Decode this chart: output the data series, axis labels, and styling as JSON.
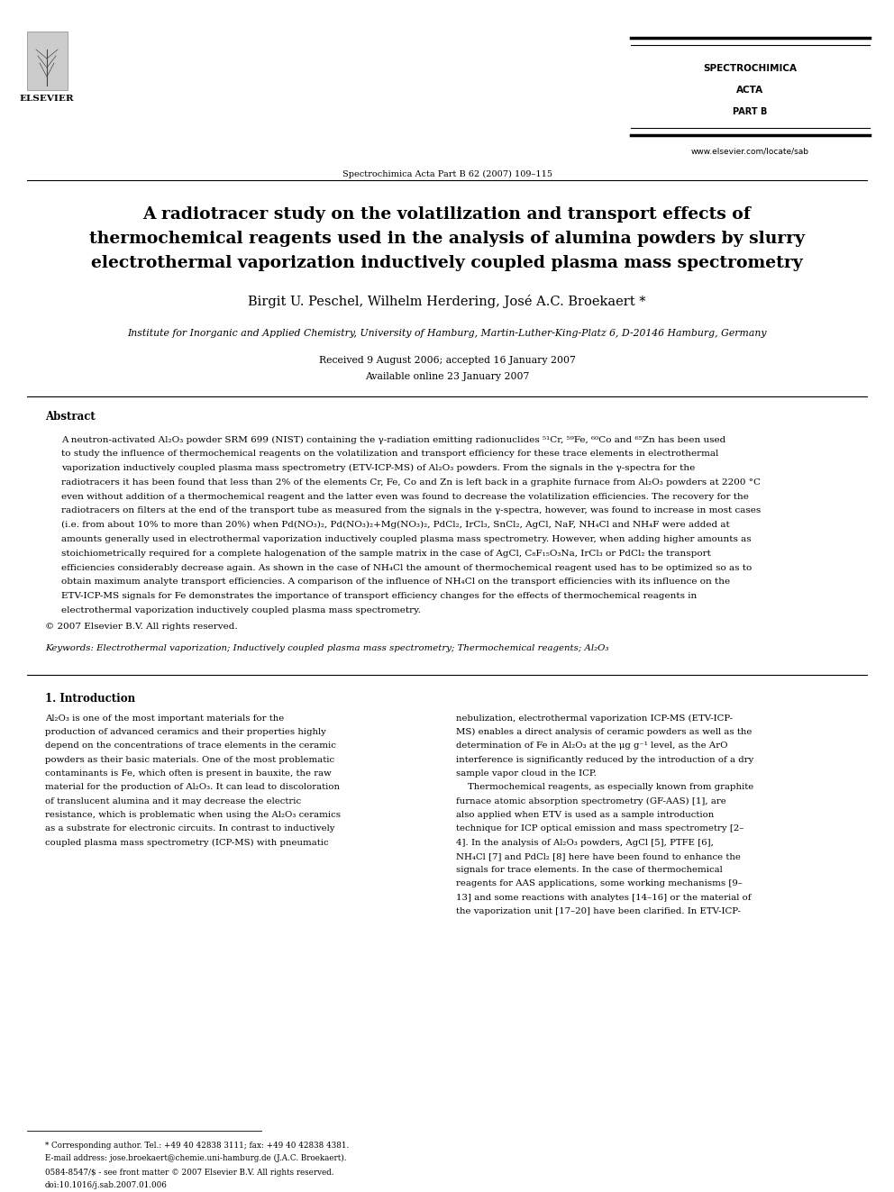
{
  "page_width": 9.92,
  "page_height": 13.23,
  "bg_color": "#ffffff",
  "journal_name_line1": "SPECTROCHIMICA",
  "journal_name_line2": "ACTA",
  "journal_part": "PART B",
  "journal_ref": "Spectrochimica Acta Part B 62 (2007) 109–115",
  "website": "www.elsevier.com/locate/sab",
  "title_line1": "A radiotracer study on the volatilization and transport effects of",
  "title_line2": "thermochemical reagents used in the analysis of alumina powders by slurry",
  "title_line3": "electrothermal vaporization inductively coupled plasma mass spectrometry",
  "authors": "Birgit U. Peschel, Wilhelm Herdering, José A.C. Broekaert *",
  "affiliation": "Institute for Inorganic and Applied Chemistry, University of Hamburg, Martin-Luther-King-Platz 6, D-20146 Hamburg, Germany",
  "received": "Received 9 August 2006; accepted 16 January 2007",
  "available": "Available online 23 January 2007",
  "abstract_title": "Abstract",
  "copyright": "© 2007 Elsevier B.V. All rights reserved.",
  "keywords": "Keywords: Electrothermal vaporization; Inductively coupled plasma mass spectrometry; Thermochemical reagents; Al₂O₃",
  "section1_title": "1. Introduction",
  "footnote_star": "* Corresponding author. Tel.: +49 40 42838 3111; fax: +49 40 42838 4381.",
  "footnote_email": "E-mail address: jose.broekaert@chemie.uni-hamburg.de (J.A.C. Broekaert).",
  "issn": "0584-8547/$ - see front matter © 2007 Elsevier B.V. All rights reserved.",
  "doi": "doi:10.1016/j.sab.2007.01.006",
  "abstract_lines": [
    "A neutron-activated Al₂O₃ powder SRM 699 (NIST) containing the γ-radiation emitting radionuclides ⁵¹Cr, ⁵⁹Fe, ⁶⁰Co and ⁶⁵Zn has been used",
    "to study the influence of thermochemical reagents on the volatilization and transport efficiency for these trace elements in electrothermal",
    "vaporization inductively coupled plasma mass spectrometry (ETV-ICP-MS) of Al₂O₃ powders. From the signals in the γ-spectra for the",
    "radiotracers it has been found that less than 2% of the elements Cr, Fe, Co and Zn is left back in a graphite furnace from Al₂O₃ powders at 2200 °C",
    "even without addition of a thermochemical reagent and the latter even was found to decrease the volatilization efficiencies. The recovery for the",
    "radiotracers on filters at the end of the transport tube as measured from the signals in the γ-spectra, however, was found to increase in most cases",
    "(i.e. from about 10% to more than 20%) when Pd(NO₃)₂, Pd(NO₃)₂+Mg(NO₃)₂, PdCl₂, IrCl₃, SnCl₂, AgCl, NaF, NH₄Cl and NH₄F were added at",
    "amounts generally used in electrothermal vaporization inductively coupled plasma mass spectrometry. However, when adding higher amounts as",
    "stoichiometrically required for a complete halogenation of the sample matrix in the case of AgCl, C₈F₁₅O₃Na, IrCl₃ or PdCl₂ the transport",
    "efficiencies considerably decrease again. As shown in the case of NH₄Cl the amount of thermochemical reagent used has to be optimized so as to",
    "obtain maximum analyte transport efficiencies. A comparison of the influence of NH₄Cl on the transport efficiencies with its influence on the",
    "ETV-ICP-MS signals for Fe demonstrates the importance of transport efficiency changes for the effects of thermochemical reagents in",
    "electrothermal vaporization inductively coupled plasma mass spectrometry."
  ],
  "col1_lines": [
    "Al₂O₃ is one of the most important materials for the",
    "production of advanced ceramics and their properties highly",
    "depend on the concentrations of trace elements in the ceramic",
    "powders as their basic materials. One of the most problematic",
    "contaminants is Fe, which often is present in bauxite, the raw",
    "material for the production of Al₂O₃. It can lead to discoloration",
    "of translucent alumina and it may decrease the electric",
    "resistance, which is problematic when using the Al₂O₃ ceramics",
    "as a substrate for electronic circuits. In contrast to inductively",
    "coupled plasma mass spectrometry (ICP-MS) with pneumatic"
  ],
  "col2_lines": [
    "nebulization, electrothermal vaporization ICP-MS (ETV-ICP-",
    "MS) enables a direct analysis of ceramic powders as well as the",
    "determination of Fe in Al₂O₃ at the μg g⁻¹ level, as the ArO",
    "interference is significantly reduced by the introduction of a dry",
    "sample vapor cloud in the ICP.",
    "    Thermochemical reagents, as especially known from graphite",
    "furnace atomic absorption spectrometry (GF-AAS) [1], are",
    "also applied when ETV is used as a sample introduction",
    "technique for ICP optical emission and mass spectrometry [2–",
    "4]. In the analysis of Al₂O₃ powders, AgCl [5], PTFE [6],",
    "NH₄Cl [7] and PdCl₂ [8] here have been found to enhance the",
    "signals for trace elements. In the case of thermochemical",
    "reagents for AAS applications, some working mechanisms [9–",
    "13] and some reactions with analytes [14–16] or the material of",
    "the vaporization unit [17–20] have been clarified. In ETV-ICP-"
  ]
}
